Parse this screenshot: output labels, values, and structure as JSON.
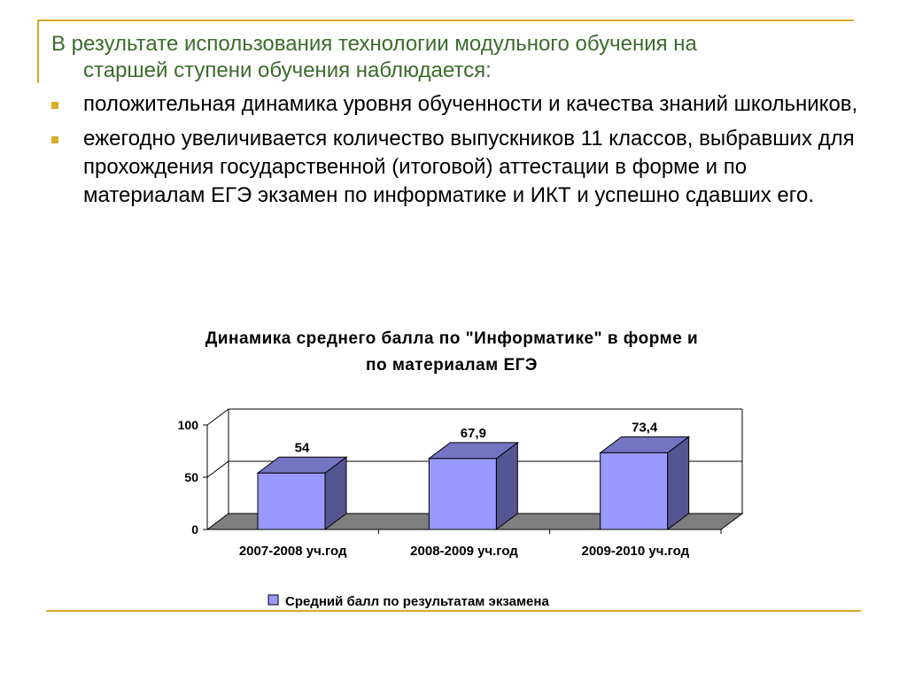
{
  "slide": {
    "intro_line1": "В результате использования технологии модульного обучения на",
    "intro_line2": "старшей ступени обучения наблюдается:",
    "bullets": [
      "положительная динамика уровня обученности и качества знаний школьников,",
      "ежегодно увеличивается количество выпускников 11 классов, выбравших для прохождения государственной (итоговой) аттестации в форме и по материалам ЕГЭ экзамен по информатике и ИКТ и успешно сдавших его."
    ],
    "accent_color": "#d9a929",
    "intro_color": "#3c6b2c"
  },
  "chart_data": {
    "type": "bar",
    "title_line1": "Динамика среднего балла по \"Информатике\" в форме и",
    "title_line2": "по материалам ЕГЭ",
    "categories": [
      "2007-2008 уч.год",
      "2008-2009 уч.год",
      "2009-2010 уч.год"
    ],
    "series": [
      {
        "name": "Средний балл по результатам экзамена",
        "values": [
          54,
          67.9,
          73.4
        ],
        "labels": [
          "54",
          "67,9",
          "73,4"
        ]
      }
    ],
    "yticks": [
      "0",
      "50",
      "100"
    ],
    "ylim": [
      0,
      100
    ],
    "grid": true,
    "legend": "bottom",
    "bar_front_color": "#9999ff",
    "bar_side_color": "#555593",
    "bar_top_color": "#7474c4",
    "floor_color": "#7f7f7f"
  }
}
